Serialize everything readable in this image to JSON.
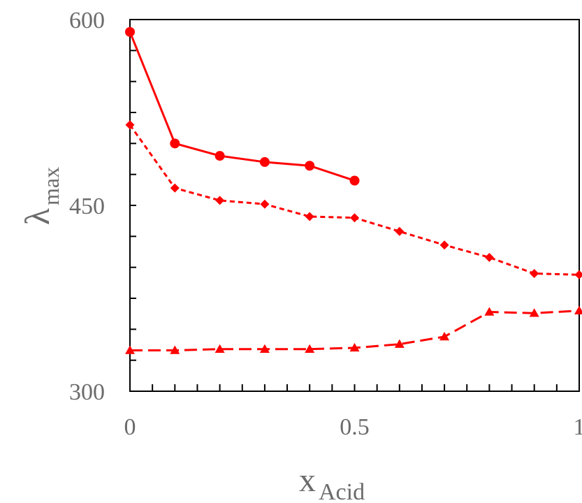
{
  "chart_data": {
    "type": "line",
    "xlabel": {
      "main": "x",
      "sub": "Acid"
    },
    "ylabel": {
      "main": "λ",
      "sub": "max"
    },
    "xlim": [
      0,
      1
    ],
    "ylim": [
      300,
      600
    ],
    "xticks": [
      {
        "value": 0,
        "label": "0"
      },
      {
        "value": 0.5,
        "label": "0.5"
      },
      {
        "value": 1,
        "label": "1"
      }
    ],
    "x_minor_step": 0.05,
    "yticks": [
      {
        "value": 300,
        "label": "300"
      },
      {
        "value": 450,
        "label": "450"
      },
      {
        "value": 600,
        "label": "600"
      }
    ],
    "y_minor_step": 25,
    "grid": false,
    "color": "#ff0000",
    "series": [
      {
        "marker": "circle",
        "line": "solid",
        "x": [
          0,
          0.1,
          0.2,
          0.3,
          0.4,
          0.5
        ],
        "y": [
          590,
          500,
          490,
          485,
          482,
          470
        ]
      },
      {
        "marker": "diamond",
        "line": "dashed",
        "x": [
          0,
          0.1,
          0.2,
          0.3,
          0.4,
          0.5,
          0.6,
          0.7,
          0.8,
          0.9,
          1.0
        ],
        "y": [
          515,
          464,
          454,
          451,
          441,
          440,
          429,
          418,
          408,
          395,
          394
        ]
      },
      {
        "marker": "triangle",
        "line": "long-dashed",
        "x": [
          0,
          0.1,
          0.2,
          0.3,
          0.4,
          0.5,
          0.6,
          0.7,
          0.8,
          0.9,
          1.0
        ],
        "y": [
          333,
          333,
          334,
          334,
          334,
          335,
          338,
          344,
          364,
          363,
          365
        ]
      }
    ]
  }
}
